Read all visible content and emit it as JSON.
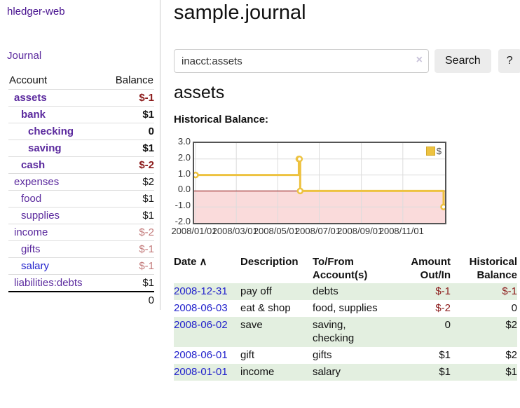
{
  "app_title": "hledger-web",
  "nav": {
    "journal_label": "Journal"
  },
  "sidebar": {
    "headers": {
      "account": "Account",
      "balance": "Balance"
    },
    "rows": [
      {
        "account": "assets",
        "balance": "$-1",
        "depth": 1,
        "bold": true,
        "balance_style": "neg-bold",
        "link_style": "purple"
      },
      {
        "account": "bank",
        "balance": "$1",
        "depth": 2,
        "bold": true,
        "balance_style": "plainbal",
        "link_style": "purple"
      },
      {
        "account": "checking",
        "balance": "0",
        "depth": 3,
        "bold": true,
        "balance_style": "plainbal",
        "link_style": "purple"
      },
      {
        "account": "saving",
        "balance": "$1",
        "depth": 3,
        "bold": true,
        "balance_style": "plainbal",
        "link_style": "purple"
      },
      {
        "account": "cash",
        "balance": "$-2",
        "depth": 2,
        "bold": true,
        "balance_style": "neg-bold",
        "link_style": "purple"
      },
      {
        "account": "expenses",
        "balance": "$2",
        "depth": 1,
        "bold": false,
        "balance_style": "plainbal",
        "link_style": "purple"
      },
      {
        "account": "food",
        "balance": "$1",
        "depth": 2,
        "bold": false,
        "balance_style": "plainbal",
        "link_style": "purple"
      },
      {
        "account": "supplies",
        "balance": "$1",
        "depth": 2,
        "bold": false,
        "balance_style": "plainbal",
        "link_style": "purple"
      },
      {
        "account": "income",
        "balance": "$-2",
        "depth": 1,
        "bold": false,
        "balance_style": "neg-soft",
        "link_style": "purple"
      },
      {
        "account": "gifts",
        "balance": "$-1",
        "depth": 2,
        "bold": false,
        "balance_style": "neg-soft",
        "link_style": "purple"
      },
      {
        "account": "salary",
        "balance": "$-1",
        "depth": 2,
        "bold": false,
        "balance_style": "neg-soft",
        "link_style": "blue"
      },
      {
        "account": "liabilities:debts",
        "balance": "$1",
        "depth": 1,
        "bold": false,
        "balance_style": "plainbal",
        "link_style": "purple"
      }
    ],
    "total": "0"
  },
  "main": {
    "title": "sample.journal",
    "search": {
      "value": "inacct:assets",
      "clear_icon": "×",
      "search_button": "Search",
      "help_button": "?"
    },
    "account_heading": "assets",
    "chart_heading": "Historical Balance:"
  },
  "chart_data": {
    "type": "line",
    "title": "Historical Balance:",
    "series": [
      {
        "name": "$",
        "color": "#EDC240",
        "steps": true,
        "points": [
          {
            "date": "2008-01-01",
            "value": 1
          },
          {
            "date": "2008-06-01",
            "value": 2
          },
          {
            "date": "2008-06-02",
            "value": 2
          },
          {
            "date": "2008-06-03",
            "value": 0
          },
          {
            "date": "2008-12-31",
            "value": -1
          }
        ]
      }
    ],
    "x_ticks": [
      {
        "label": "2008/01/01",
        "day": 0
      },
      {
        "label": "2008/03/01",
        "day": 60
      },
      {
        "label": "2008/05/01",
        "day": 121
      },
      {
        "label": "2008/07/01",
        "day": 182
      },
      {
        "label": "2008/09/01",
        "day": 244
      },
      {
        "label": "2008/11/01",
        "day": 305
      }
    ],
    "y_ticks": [
      3.0,
      2.0,
      1.0,
      0.0,
      -1.0,
      -2.0
    ],
    "ylim": [
      -2,
      3
    ],
    "x_range_days": 365,
    "grid": true,
    "legend": {
      "label": "$",
      "position": "top-right"
    },
    "negative_region_color": "#fadbdb",
    "zero_line_color": "#8b0000",
    "grid_color": "#dcdcdc"
  },
  "register": {
    "headers": {
      "date": "Date",
      "sort_indicator": "∧",
      "description": "Description",
      "accounts_line1": "To/From",
      "accounts_line2": "Account(s)",
      "amount_line1": "Amount",
      "amount_line2": "Out/In",
      "balance_line1": "Historical",
      "balance_line2": "Balance"
    },
    "rows": [
      {
        "date": "2008-12-31",
        "description": "pay off",
        "accounts": "debts",
        "amount": "$-1",
        "amount_style": "neg",
        "balance": "$-1",
        "balance_style": "neg"
      },
      {
        "date": "2008-06-03",
        "description": "eat & shop",
        "accounts": "food, supplies",
        "amount": "$-2",
        "amount_style": "neg",
        "balance": "0",
        "balance_style": "plain"
      },
      {
        "date": "2008-06-02",
        "description": "save",
        "accounts": "saving, checking",
        "amount": "0",
        "amount_style": "plain",
        "balance": "$2",
        "balance_style": "plain"
      },
      {
        "date": "2008-06-01",
        "description": "gift",
        "accounts": "gifts",
        "amount": "$1",
        "amount_style": "plain",
        "balance": "$2",
        "balance_style": "plain"
      },
      {
        "date": "2008-01-01",
        "description": "income",
        "accounts": "salary",
        "amount": "$1",
        "amount_style": "plain",
        "balance": "$1",
        "balance_style": "plain"
      }
    ]
  },
  "colors": {
    "link_purple": "#5b2a9e",
    "link_blue": "#2222cc",
    "negative_bold": "#8b1a1a",
    "negative_soft": "#c27979",
    "row_green": "#e3efe0",
    "series_yellow": "#EDC240"
  }
}
